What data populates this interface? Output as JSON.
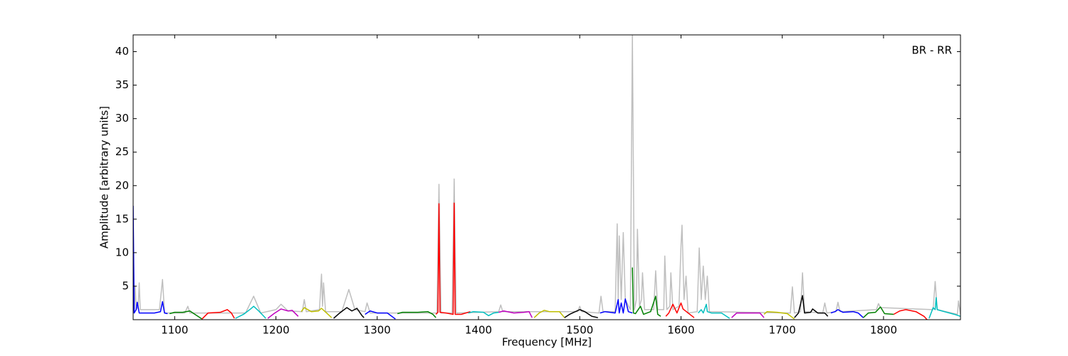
{
  "chart_data": {
    "type": "line",
    "xlabel": "Frequency [MHz]",
    "ylabel": "Amplitude [arbitrary units]",
    "annotation": "BR - RR",
    "xlim": [
      1059,
      1876
    ],
    "ylim": [
      0,
      42.5
    ],
    "xticks": [
      1100,
      1200,
      1300,
      1400,
      1500,
      1600,
      1700,
      1800
    ],
    "yticks": [
      5,
      10,
      15,
      20,
      25,
      30,
      35,
      40
    ],
    "series": [
      {
        "color": "#bfbfbf",
        "x": [
          1059,
          1060,
          1061,
          1062,
          1064,
          1065,
          1066,
          1085,
          1088,
          1090,
          1110,
          1113,
          1115,
          1170,
          1178,
          1185,
          1200,
          1205,
          1212,
          1226,
          1228,
          1230,
          1243,
          1245,
          1246,
          1247,
          1249,
          1265,
          1272,
          1278,
          1288,
          1290,
          1293,
          1359,
          1361,
          1363,
          1374,
          1376,
          1378,
          1420,
          1422,
          1424,
          1498,
          1500,
          1502,
          1519,
          1521,
          1523,
          1535,
          1537,
          1538,
          1539,
          1541,
          1543,
          1545,
          1550,
          1552,
          1554,
          1556,
          1557,
          1559,
          1561,
          1562,
          1564,
          1573,
          1575,
          1577,
          1583,
          1584,
          1586,
          1589,
          1590,
          1592,
          1598,
          1600,
          1601,
          1603,
          1605,
          1607,
          1616,
          1618,
          1620,
          1622,
          1624,
          1626,
          1628,
          1708,
          1710,
          1712,
          1718,
          1720,
          1722,
          1740,
          1742,
          1744,
          1753,
          1755,
          1757,
          1793,
          1795,
          1797,
          1849,
          1851,
          1853,
          1873,
          1874,
          1876
        ],
        "values": [
          17,
          1,
          5,
          1.5,
          2,
          5.5,
          1.5,
          1.5,
          6,
          1,
          1,
          2,
          1,
          1,
          3.5,
          1,
          1.5,
          2.3,
          1.3,
          1.2,
          3,
          1.2,
          1.5,
          6.8,
          2,
          5.5,
          1.2,
          1.2,
          4.5,
          1.5,
          1.2,
          2.5,
          1,
          1,
          20.2,
          1,
          1,
          21,
          1,
          1.2,
          2.2,
          1.2,
          1.2,
          2,
          1.2,
          1,
          3.5,
          1.2,
          1.2,
          14.3,
          3,
          12.5,
          3,
          13,
          3,
          1.5,
          42.5,
          1.5,
          3,
          13.5,
          2,
          3,
          7,
          1.5,
          1.5,
          7.3,
          1.5,
          1.5,
          9.5,
          1.5,
          2,
          7,
          1.5,
          2,
          11,
          14.1,
          3,
          6.5,
          1,
          1.2,
          10.7,
          3,
          8,
          3,
          6.5,
          1.2,
          1,
          4.9,
          1,
          1.2,
          7,
          1.2,
          1,
          2.5,
          1,
          1.2,
          2.6,
          1.2,
          1.5,
          2.4,
          1.8,
          1.5,
          5.7,
          1.5,
          0.8,
          2.8,
          0.8
        ]
      },
      {
        "color": "#0000ff",
        "x": [
          1059,
          1060,
          1062,
          1063,
          1065,
          1070,
          1080,
          1086,
          1088,
          1090,
          1093
        ],
        "values": [
          17,
          1,
          1.5,
          2.6,
          1,
          1,
          1,
          1.2,
          2.7,
          1,
          0.9
        ]
      },
      {
        "color": "#008000",
        "x": [
          1095,
          1100,
          1108,
          1115,
          1120,
          1127
        ],
        "values": [
          0.9,
          1.1,
          1.1,
          1.3,
          0.8,
          0.1
        ]
      },
      {
        "color": "#ff0000",
        "x": [
          1127,
          1133,
          1145,
          1152,
          1156,
          1159
        ],
        "values": [
          0.1,
          1,
          1.1,
          1.5,
          1,
          0.2
        ]
      },
      {
        "color": "#00bfbf",
        "x": [
          1160,
          1168,
          1175,
          1178,
          1183,
          1190
        ],
        "values": [
          0.2,
          0.8,
          1.6,
          2,
          1.3,
          0.2
        ]
      },
      {
        "color": "#bf00bf",
        "x": [
          1192,
          1198,
          1205,
          1212,
          1216,
          1222
        ],
        "values": [
          0.2,
          0.9,
          1.6,
          1.3,
          1.4,
          0.5
        ]
      },
      {
        "color": "#bfbf00",
        "x": [
          1225,
          1228,
          1235,
          1242,
          1245,
          1250,
          1255
        ],
        "values": [
          1.2,
          1.8,
          1.2,
          1.3,
          1.7,
          1,
          0.3
        ]
      },
      {
        "color": "#000000",
        "x": [
          1257,
          1263,
          1270,
          1275,
          1280,
          1285,
          1287
        ],
        "values": [
          0.2,
          1,
          1.8,
          1.3,
          1.7,
          0.6,
          0.3
        ]
      },
      {
        "color": "#0000ff",
        "x": [
          1288,
          1293,
          1300,
          1310,
          1318
        ],
        "values": [
          0.8,
          1.3,
          1,
          1,
          0.1
        ]
      },
      {
        "color": "#008000",
        "x": [
          1320,
          1325,
          1340,
          1350,
          1355,
          1358
        ],
        "values": [
          0.9,
          1.1,
          1.1,
          1.2,
          0.8,
          0.3
        ]
      },
      {
        "color": "#ff0000",
        "x": [
          1358,
          1360,
          1361,
          1362,
          1368,
          1375,
          1376,
          1377,
          1383,
          1392
        ],
        "values": [
          0.8,
          1.1,
          17.3,
          1.1,
          1,
          0.8,
          17.4,
          0.8,
          0.8,
          1.2
        ]
      },
      {
        "color": "#00bfbf",
        "x": [
          1390,
          1395,
          1405,
          1410,
          1415,
          1420
        ],
        "values": [
          1,
          1.2,
          1.1,
          0.6,
          1,
          1.1
        ]
      },
      {
        "color": "#bf00bf",
        "x": [
          1420,
          1425,
          1435,
          1445,
          1450,
          1453
        ],
        "values": [
          1.1,
          1.3,
          1,
          1.1,
          1.2,
          0.3
        ]
      },
      {
        "color": "#bfbf00",
        "x": [
          1455,
          1460,
          1465,
          1470,
          1480,
          1485
        ],
        "values": [
          0.3,
          1,
          1.4,
          1.2,
          1.2,
          0.3
        ]
      },
      {
        "color": "#000000",
        "x": [
          1485,
          1490,
          1500,
          1505,
          1512,
          1518
        ],
        "values": [
          0.3,
          0.8,
          1.5,
          1.2,
          0.5,
          0.3
        ]
      },
      {
        "color": "#0000ff",
        "x": [
          1520,
          1525,
          1535,
          1538,
          1539,
          1541,
          1543,
          1545,
          1548,
          1552
        ],
        "values": [
          1,
          1.2,
          1,
          3,
          1,
          2.5,
          1,
          3.1,
          1.2,
          1
        ]
      },
      {
        "color": "#008000",
        "x": [
          1552,
          1553,
          1555,
          1560,
          1563,
          1570,
          1575,
          1577,
          1580
        ],
        "values": [
          7.8,
          1,
          0.9,
          2,
          0.8,
          1.2,
          3.5,
          0.8,
          0.5
        ]
      },
      {
        "color": "#ff0000",
        "x": [
          1585,
          1588,
          1592,
          1596,
          1600,
          1602,
          1607,
          1613
        ],
        "values": [
          0.5,
          1,
          2.3,
          1,
          2.5,
          1.6,
          1,
          0.3
        ]
      },
      {
        "color": "#00bfbf",
        "x": [
          1617,
          1620,
          1622,
          1625,
          1626,
          1630,
          1640,
          1648
        ],
        "values": [
          1,
          1.5,
          1,
          2.3,
          1.2,
          1,
          1,
          0.2
        ]
      },
      {
        "color": "#bf00bf",
        "x": [
          1650,
          1655,
          1670,
          1678,
          1682
        ],
        "values": [
          0.3,
          1,
          1,
          1,
          0.3
        ]
      },
      {
        "color": "#bfbf00",
        "x": [
          1682,
          1685,
          1695,
          1705,
          1712
        ],
        "values": [
          0.8,
          1.2,
          1.1,
          0.9,
          0.1
        ]
      },
      {
        "color": "#000000",
        "x": [
          1712,
          1716,
          1720,
          1722,
          1728,
          1730,
          1735,
          1742,
          1745
        ],
        "values": [
          0.3,
          1,
          3.6,
          1,
          1.1,
          1.6,
          1,
          1,
          0.5
        ]
      },
      {
        "color": "#0000ff",
        "x": [
          1748,
          1752,
          1755,
          1760,
          1770,
          1775,
          1780
        ],
        "values": [
          1,
          1.2,
          1.5,
          1.1,
          1.2,
          1,
          0.3
        ]
      },
      {
        "color": "#008000",
        "x": [
          1780,
          1785,
          1792,
          1797,
          1801,
          1810
        ],
        "values": [
          0.3,
          1,
          1.1,
          1.9,
          0.9,
          0.8
        ]
      },
      {
        "color": "#ff0000",
        "x": [
          1810,
          1816,
          1822,
          1832,
          1840,
          1843
        ],
        "values": [
          0.8,
          1.3,
          1.5,
          1.2,
          0.5,
          0
        ]
      },
      {
        "color": "#00bfbf",
        "x": [
          1845,
          1849,
          1851,
          1852,
          1853,
          1860,
          1870,
          1876
        ],
        "values": [
          0.2,
          1.8,
          1.5,
          3.3,
          1.5,
          1.2,
          0.8,
          0.5
        ]
      }
    ]
  }
}
